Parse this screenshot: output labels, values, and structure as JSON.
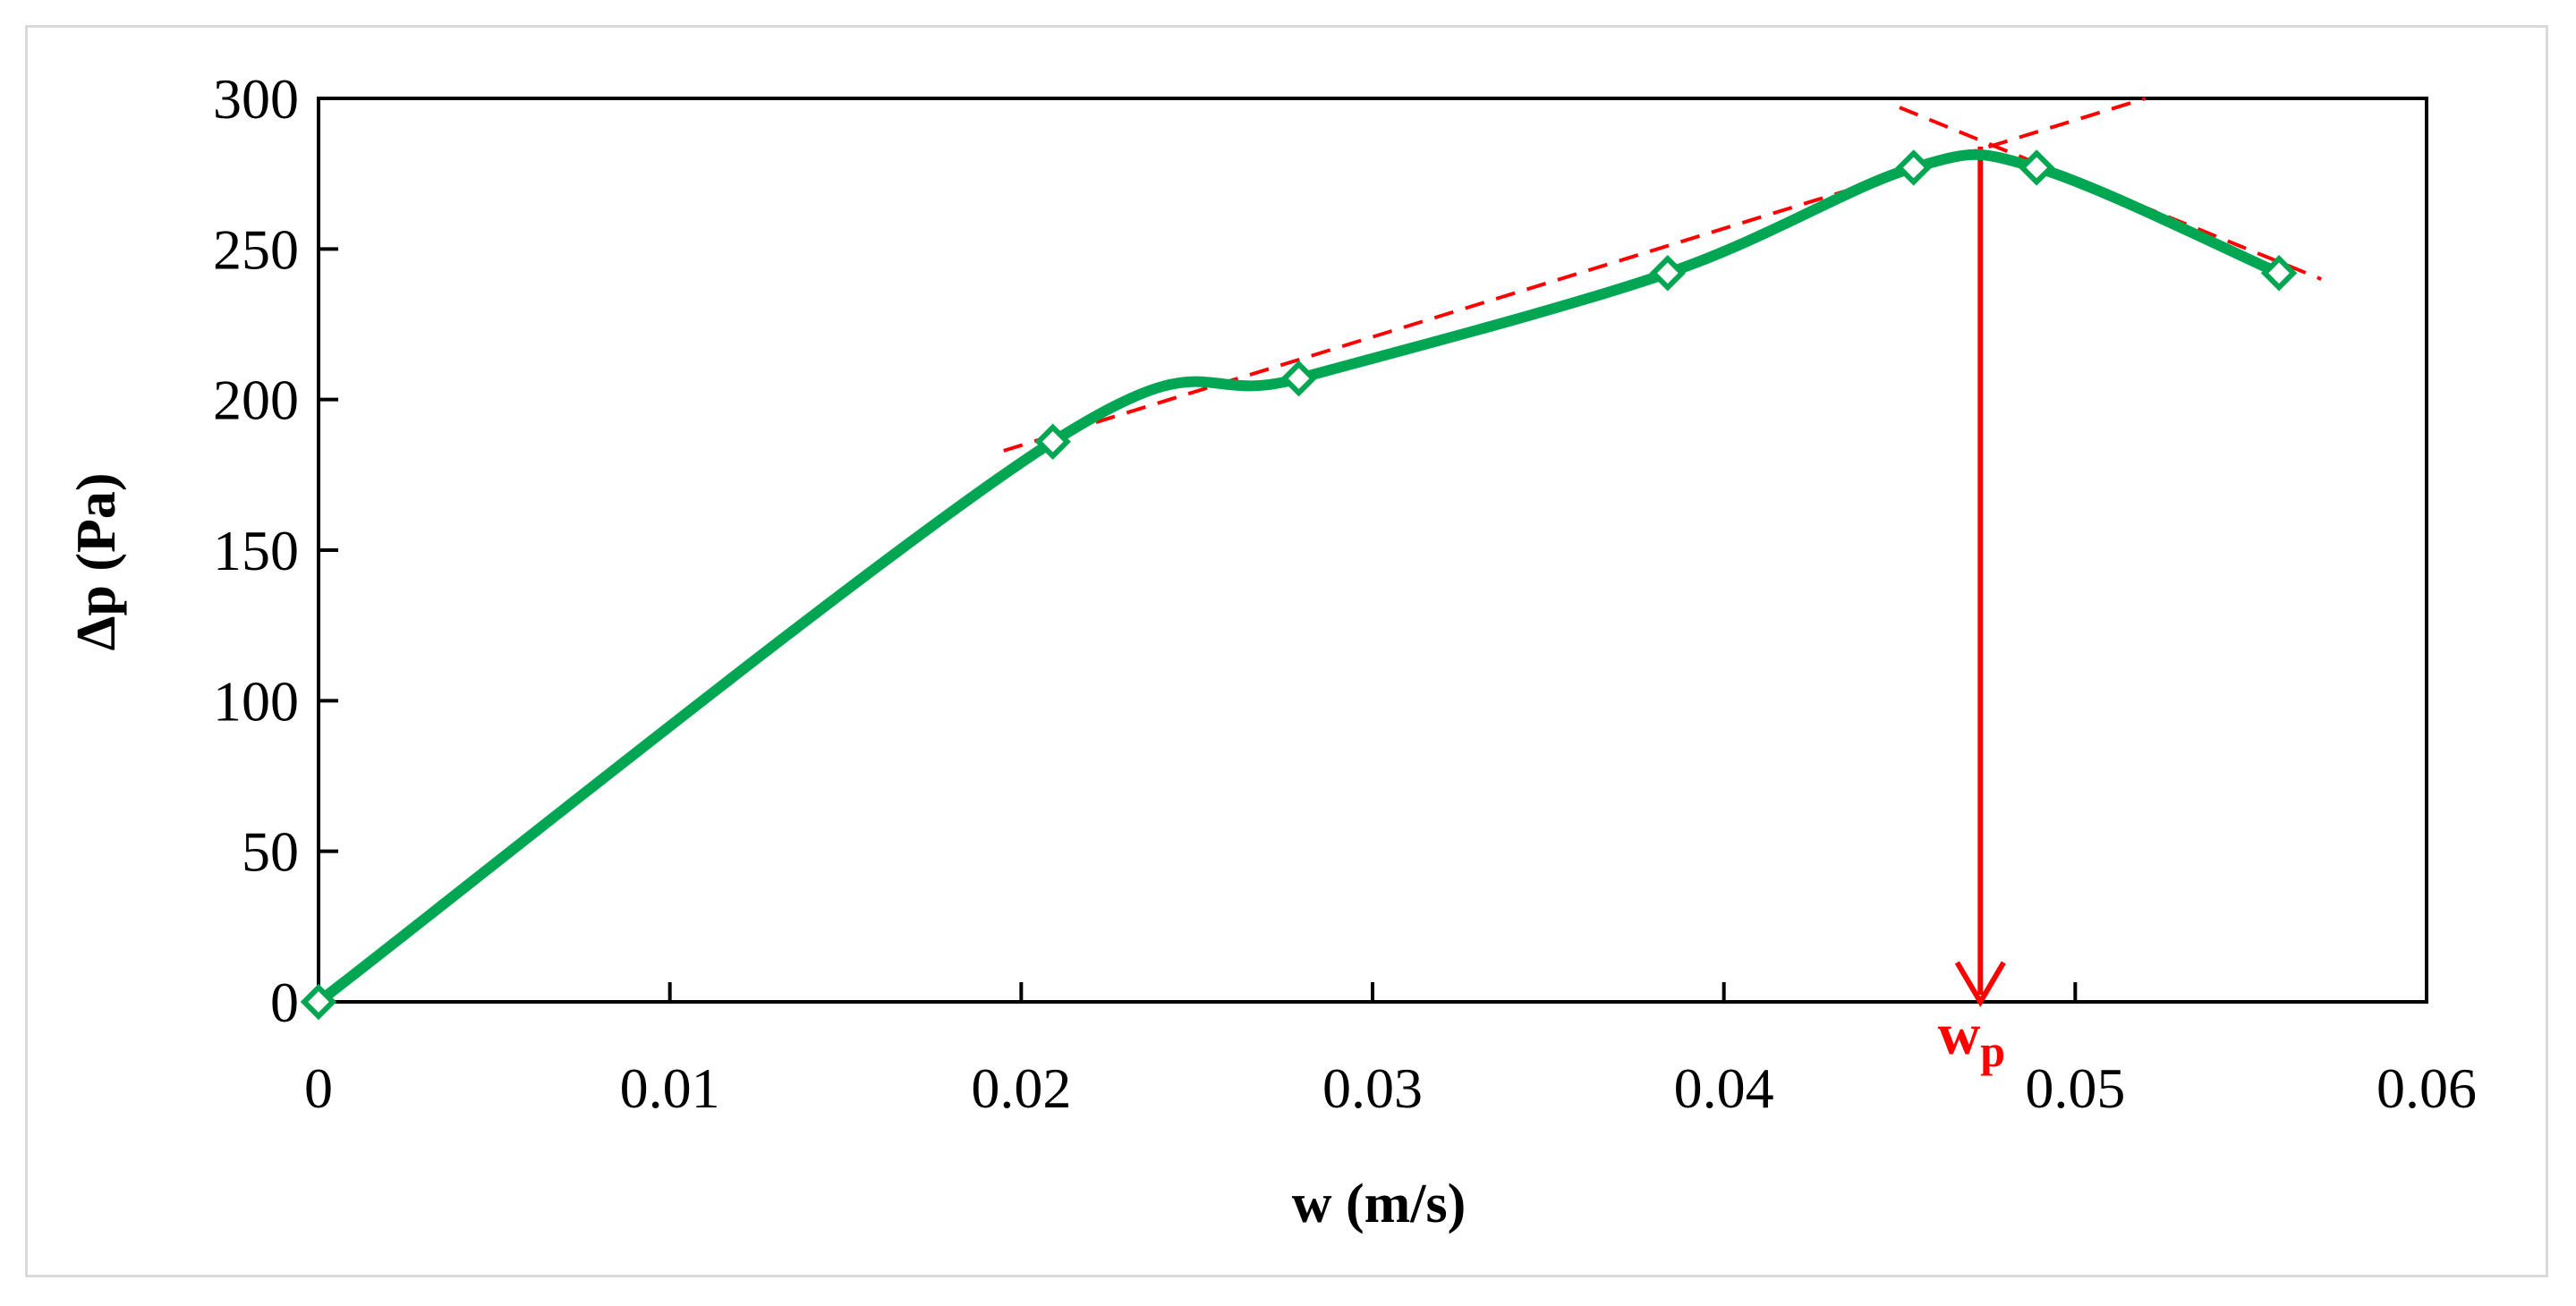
{
  "chart_data": {
    "type": "line",
    "xlabel": "w (m/s)",
    "ylabel": "Δp (Pa)",
    "xlim": [
      0,
      0.06
    ],
    "ylim": [
      0,
      300
    ],
    "x_ticks": [
      "0",
      "0.01",
      "0.02",
      "0.03",
      "0.04",
      "0.05",
      "0.06"
    ],
    "y_ticks": [
      "0",
      "50",
      "100",
      "150",
      "200",
      "250",
      "300"
    ],
    "grid": false,
    "legend": "none",
    "series": [
      {
        "color": "#00a651",
        "marker": "diamond-open",
        "x": [
          0,
          0.0209,
          0.0279,
          0.0384,
          0.0454,
          0.0489,
          0.0558
        ],
        "y": [
          0,
          186,
          207,
          242,
          277,
          277,
          242
        ]
      }
    ],
    "annotations": {
      "trend_lines": [
        {
          "color": "#ff0000",
          "style": "dashed",
          "x": [
            0.0195,
            0.052
          ],
          "y": [
            183,
            300
          ]
        },
        {
          "color": "#ff0000",
          "style": "dashed",
          "x": [
            0.045,
            0.057
          ],
          "y": [
            297,
            240
          ]
        }
      ],
      "arrow": {
        "color": "#ff0000",
        "x": 0.0473,
        "y_from": 284,
        "y_to": 0
      },
      "label": {
        "text": "w",
        "subscript": "p",
        "x": 0.0473
      }
    }
  }
}
